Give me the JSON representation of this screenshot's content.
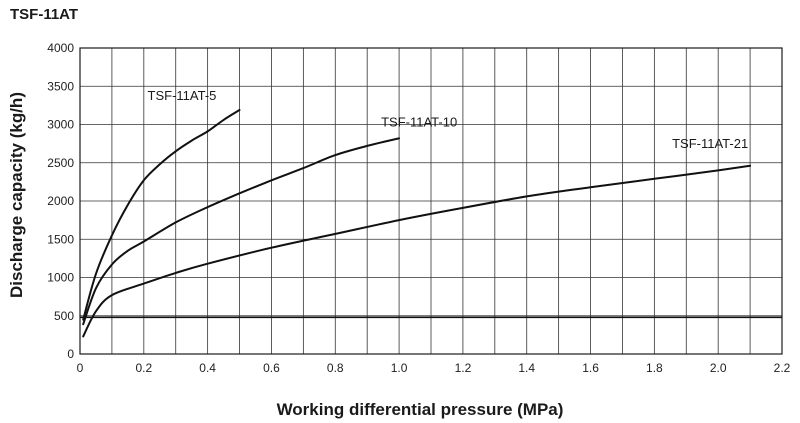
{
  "chart_data": {
    "type": "line",
    "title": "TSF-11AT",
    "xlabel": "Working differential pressure (MPa)",
    "ylabel": "Discharge capacity (kg/h)",
    "xlim": [
      0,
      2.2
    ],
    "ylim": [
      0,
      4000
    ],
    "xticks": [
      0,
      0.2,
      0.4,
      0.6,
      0.8,
      1.0,
      1.2,
      1.4,
      1.6,
      1.8,
      2.0,
      2.2
    ],
    "xtick_labels": [
      "0",
      "0.2",
      "0.4",
      "0.6",
      "0.8",
      "1.0",
      "1.2",
      "1.4",
      "1.6",
      "1.8",
      "2.0",
      "2.2"
    ],
    "yticks": [
      0,
      500,
      1000,
      1500,
      2000,
      2500,
      3000,
      3500,
      4000
    ],
    "ytick_labels": [
      "0",
      "500",
      "1000",
      "1500",
      "2000",
      "2500",
      "3000",
      "3500",
      "4000"
    ],
    "grid": true,
    "series": [
      {
        "name": "TSF-11AT-5",
        "x": [
          0.01,
          0.05,
          0.1,
          0.15,
          0.2,
          0.25,
          0.3,
          0.35,
          0.4,
          0.45,
          0.5
        ],
        "y": [
          450,
          1050,
          1550,
          1950,
          2270,
          2480,
          2650,
          2790,
          2910,
          3060,
          3190
        ]
      },
      {
        "name": "TSF-11AT-10",
        "x": [
          0.01,
          0.05,
          0.1,
          0.15,
          0.2,
          0.3,
          0.4,
          0.5,
          0.6,
          0.7,
          0.8,
          0.9,
          1.0
        ],
        "y": [
          390,
          860,
          1170,
          1350,
          1470,
          1720,
          1920,
          2100,
          2270,
          2430,
          2600,
          2720,
          2820
        ]
      },
      {
        "name": "TSF-11AT-21",
        "x": [
          0.01,
          0.05,
          0.1,
          0.2,
          0.3,
          0.4,
          0.6,
          0.8,
          1.0,
          1.2,
          1.4,
          1.6,
          1.8,
          2.0,
          2.1
        ],
        "y": [
          230,
          560,
          770,
          920,
          1060,
          1180,
          1390,
          1570,
          1750,
          1910,
          2060,
          2180,
          2290,
          2400,
          2460
        ]
      }
    ],
    "reference_lines": [
      {
        "axis": "y",
        "value": 480
      }
    ]
  }
}
